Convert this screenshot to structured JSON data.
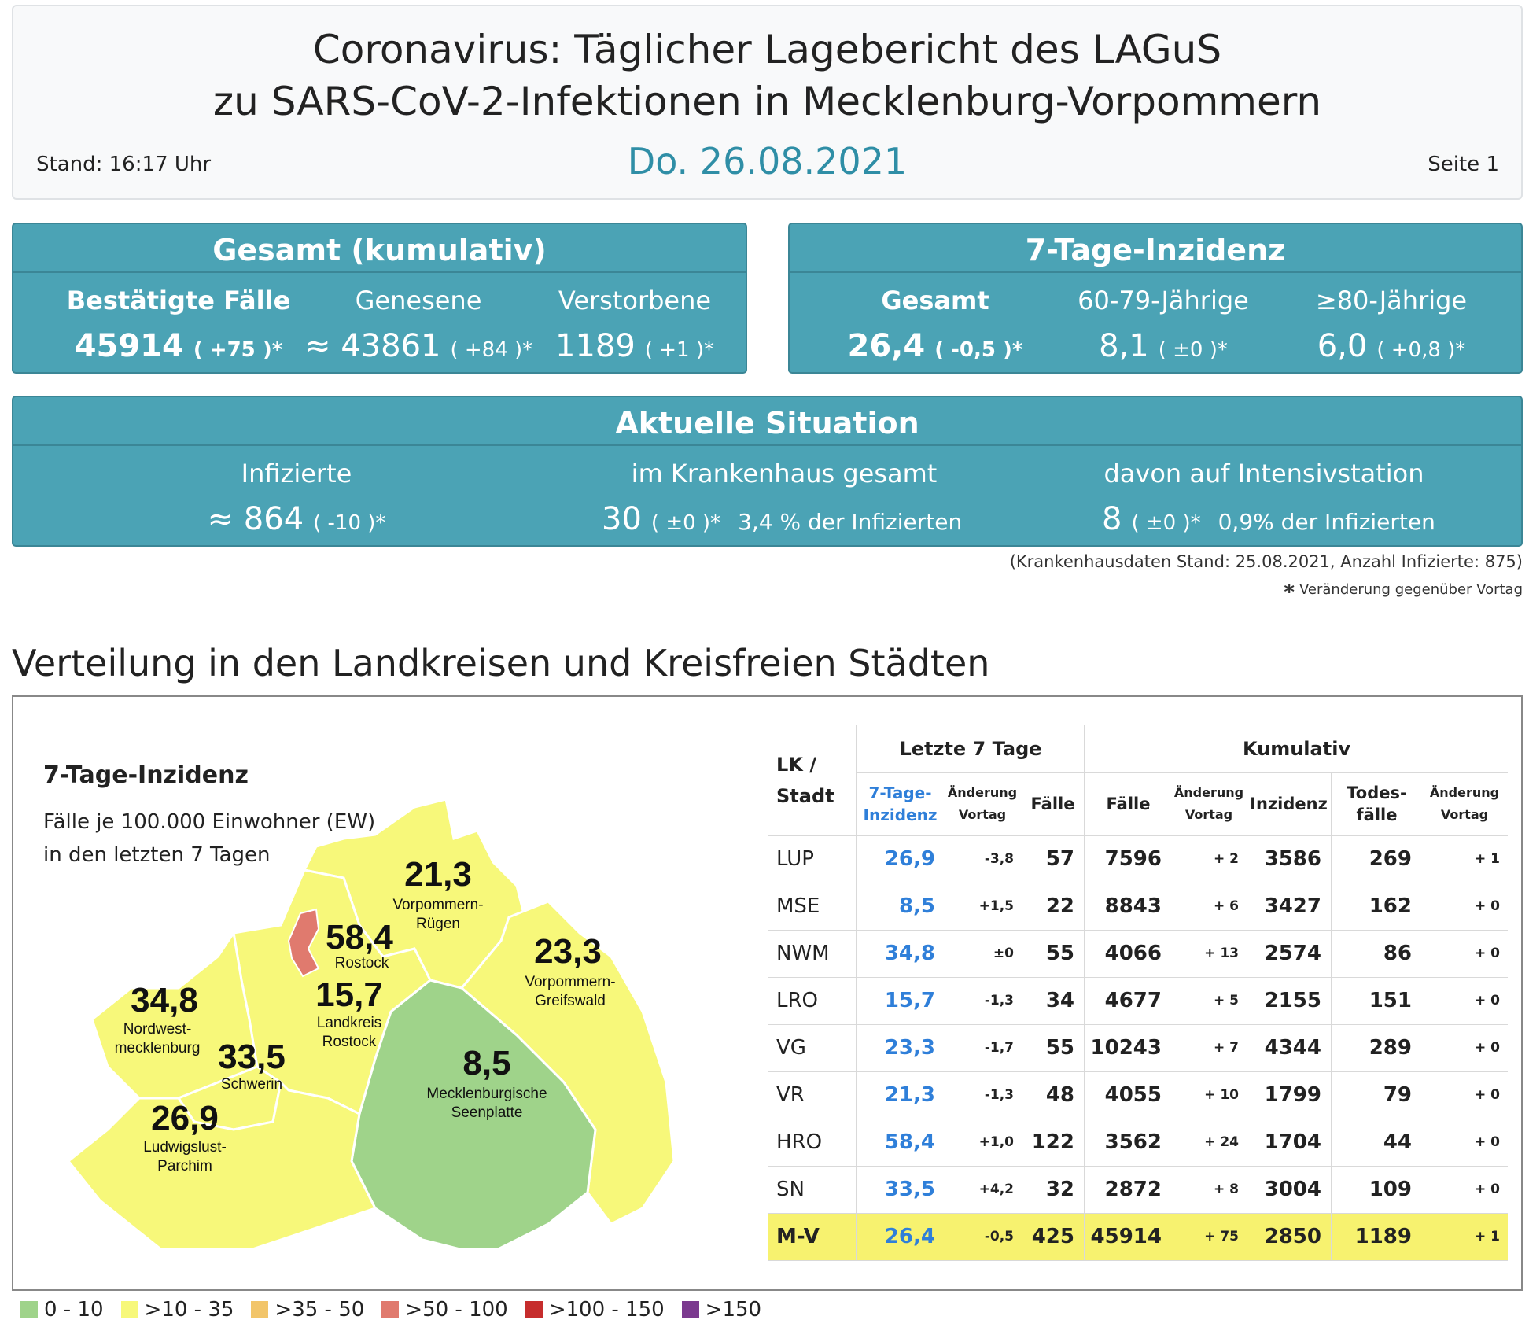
{
  "header": {
    "title_line1": "Coronavirus: Täglicher Lagebericht des LAGuS",
    "title_line2": "zu SARS-CoV-2-Infektionen in Mecklenburg-Vorpommern",
    "date": "Do. 26.08.2021",
    "stand": "Stand: 16:17 Uhr",
    "seite": "Seite 1"
  },
  "gesamt": {
    "title": "Gesamt (kumulativ)",
    "bestaetigt_label": "Bestätigte Fälle",
    "bestaetigt_value": "45914",
    "bestaetigt_change": "( +75 )*",
    "genesene_label": "Genesene",
    "genesene_value": "≈ 43861",
    "genesene_change": "( +84 )*",
    "verstorbene_label": "Verstorbene",
    "verstorbene_value": "1189",
    "verstorbene_change": "( +1 )*"
  },
  "inzidenz": {
    "title": "7-Tage-Inzidenz",
    "gesamt_label": "Gesamt",
    "gesamt_value": "26,4",
    "gesamt_change": "( -0,5 )*",
    "age60_label": "60-79-Jährige",
    "age60_value": "8,1",
    "age60_change": "( ±0 )*",
    "age80_label": "≥80-Jährige",
    "age80_value": "6,0",
    "age80_change": "( +0,8 )*"
  },
  "aktuell": {
    "title": "Aktuelle Situation",
    "infizierte_label": "Infizierte",
    "infizierte_value": "≈ 864",
    "infizierte_change": "( -10 )*",
    "kh_label": "im Krankenhaus gesamt",
    "kh_value": "30",
    "kh_change": "( ±0 )*",
    "kh_note": "3,4 % der Infizierten",
    "its_label": "davon auf Intensivstation",
    "its_value": "8",
    "its_change": "( ±0 )*",
    "its_note": "0,9% der Infizierten"
  },
  "notes": {
    "kh_stand": "(Krankenhausdaten Stand: 25.08.2021, Anzahl Infizierte: 875)",
    "asterisk": "*",
    "veraenderung": "Veränderung gegenüber Vortag"
  },
  "section_title": "Verteilung in den Landkreisen und Kreisfreien Städten",
  "map": {
    "title": "7-Tage-Inzidenz",
    "sub_line1": "Fälle je 100.000 Einwohner (EW)",
    "sub_line2": "in den letzten 7 Tagen",
    "regions": [
      {
        "value": "21,3",
        "name1": "Vorpommern-",
        "name2": "Rügen",
        "color": "#f7f87a"
      },
      {
        "value": "58,4",
        "name1": "Rostock",
        "name2": "",
        "color": "#e07a6e"
      },
      {
        "value": "23,3",
        "name1": "Vorpommern-",
        "name2": "Greifswald",
        "color": "#f7f87a"
      },
      {
        "value": "34,8",
        "name1": "Nordwest-",
        "name2": "mecklenburg",
        "color": "#f7f87a"
      },
      {
        "value": "15,7",
        "name1": "Landkreis",
        "name2": "Rostock",
        "color": "#f7f87a"
      },
      {
        "value": "33,5",
        "name1": "Schwerin",
        "name2": "",
        "color": "#f7f87a"
      },
      {
        "value": "8,5",
        "name1": "Mecklenburgische",
        "name2": "Seenplatte",
        "color": "#9fd38a"
      },
      {
        "value": "26,9",
        "name1": "Ludwigslust-",
        "name2": "Parchim",
        "color": "#f7f87a"
      }
    ]
  },
  "table": {
    "group_last7": "Letzte 7 Tage",
    "group_kumulativ": "Kumulativ",
    "col_lk_1": "LK /",
    "col_lk_2": "Stadt",
    "col_inz_1": "7-Tage-",
    "col_inz_2": "Inzidenz",
    "col_aend_1": "Änderung",
    "col_aend_2": "Vortag",
    "col_faelle7": "Fälle",
    "col_faelle": "Fälle",
    "col_aend2_1": "Änderung",
    "col_aend2_2": "Vortag",
    "col_inzidenz": "Inzidenz",
    "col_tod_1": "Todes-",
    "col_tod_2": "fälle",
    "col_aend3_1": "Änderung",
    "col_aend3_2": "Vortag",
    "rows": [
      {
        "lk": "LUP",
        "inz": "26,9",
        "aend": "-3,8",
        "f7": "57",
        "f": "7596",
        "fa": "+ 2",
        "i": "3586",
        "t": "269",
        "ta": "+ 1"
      },
      {
        "lk": "MSE",
        "inz": "8,5",
        "aend": "+1,5",
        "f7": "22",
        "f": "8843",
        "fa": "+ 6",
        "i": "3427",
        "t": "162",
        "ta": "+ 0"
      },
      {
        "lk": "NWM",
        "inz": "34,8",
        "aend": "±0",
        "f7": "55",
        "f": "4066",
        "fa": "+ 13",
        "i": "2574",
        "t": "86",
        "ta": "+ 0"
      },
      {
        "lk": "LRO",
        "inz": "15,7",
        "aend": "-1,3",
        "f7": "34",
        "f": "4677",
        "fa": "+ 5",
        "i": "2155",
        "t": "151",
        "ta": "+ 0"
      },
      {
        "lk": "VG",
        "inz": "23,3",
        "aend": "-1,7",
        "f7": "55",
        "f": "10243",
        "fa": "+ 7",
        "i": "4344",
        "t": "289",
        "ta": "+ 0"
      },
      {
        "lk": "VR",
        "inz": "21,3",
        "aend": "-1,3",
        "f7": "48",
        "f": "4055",
        "fa": "+ 10",
        "i": "1799",
        "t": "79",
        "ta": "+ 0"
      },
      {
        "lk": "HRO",
        "inz": "58,4",
        "aend": "+1,0",
        "f7": "122",
        "f": "3562",
        "fa": "+ 24",
        "i": "1704",
        "t": "44",
        "ta": "+ 0"
      },
      {
        "lk": "SN",
        "inz": "33,5",
        "aend": "+4,2",
        "f7": "32",
        "f": "2872",
        "fa": "+ 8",
        "i": "3004",
        "t": "109",
        "ta": "+ 0"
      },
      {
        "lk": "M-V",
        "inz": "26,4",
        "aend": "-0,5",
        "f7": "425",
        "f": "45914",
        "fa": "+ 75",
        "i": "2850",
        "t": "1189",
        "ta": "+ 1"
      }
    ]
  },
  "legend": [
    {
      "label": "0 - 10",
      "color": "#9fd38a"
    },
    {
      "label": ">10 - 35",
      "color": "#f7f87a"
    },
    {
      "label": ">35 - 50",
      "color": "#f2c56a"
    },
    {
      "label": ">50 - 100",
      "color": "#e07a6e"
    },
    {
      "label": ">100 - 150",
      "color": "#c62d2d"
    },
    {
      "label": ">150",
      "color": "#7b3a8f"
    }
  ]
}
